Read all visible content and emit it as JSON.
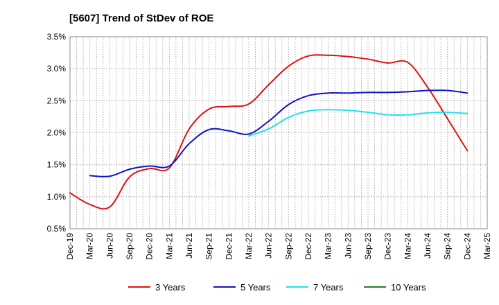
{
  "chart_data": {
    "type": "line",
    "title": "[5607]  Trend of StDev of ROE",
    "xlabel": "",
    "ylabel": "",
    "x_ticks": [
      "Dec-19",
      "Mar-20",
      "Jun-20",
      "Sep-20",
      "Dec-20",
      "Mar-21",
      "Jun-21",
      "Sep-21",
      "Dec-21",
      "Mar-22",
      "Jun-22",
      "Sep-22",
      "Dec-22",
      "Mar-23",
      "Jun-23",
      "Sep-23",
      "Dec-23",
      "Mar-24",
      "Jun-24",
      "Sep-24",
      "Dec-24",
      "Mar-25"
    ],
    "y_ticks": [
      "0.5%",
      "1.0%",
      "1.5%",
      "2.0%",
      "2.5%",
      "3.0%",
      "3.5%"
    ],
    "ylim": [
      0.5,
      3.5
    ],
    "grid": true,
    "legend_position": "bottom",
    "series": [
      {
        "name": "3 Years",
        "color": "#e01010",
        "x": [
          "Dec-19",
          "Mar-20",
          "Jun-20",
          "Sep-20",
          "Dec-20",
          "Mar-21",
          "Jun-21",
          "Sep-21",
          "Dec-21",
          "Mar-22",
          "Jun-22",
          "Sep-22",
          "Dec-22",
          "Mar-23",
          "Jun-23",
          "Sep-23",
          "Dec-23",
          "Mar-24",
          "Jun-24",
          "Sep-24",
          "Dec-24"
        ],
        "values": [
          1.06,
          0.88,
          0.84,
          1.31,
          1.44,
          1.45,
          2.06,
          2.37,
          2.41,
          2.45,
          2.75,
          3.04,
          3.2,
          3.21,
          3.19,
          3.15,
          3.09,
          3.1,
          2.71,
          2.22,
          1.72
        ]
      },
      {
        "name": "5 Years",
        "color": "#1010c8",
        "x": [
          "Mar-20",
          "Jun-20",
          "Sep-20",
          "Dec-20",
          "Mar-21",
          "Jun-21",
          "Sep-21",
          "Dec-21",
          "Mar-22",
          "Jun-22",
          "Sep-22",
          "Dec-22",
          "Mar-23",
          "Jun-23",
          "Sep-23",
          "Dec-23",
          "Mar-24",
          "Jun-24",
          "Sep-24",
          "Dec-24"
        ],
        "values": [
          1.33,
          1.32,
          1.43,
          1.48,
          1.48,
          1.83,
          2.05,
          2.03,
          1.98,
          2.18,
          2.44,
          2.58,
          2.62,
          2.62,
          2.63,
          2.63,
          2.64,
          2.66,
          2.66,
          2.62
        ]
      },
      {
        "name": "7 Years",
        "color": "#20e0e8",
        "x": [
          "Mar-22",
          "Jun-22",
          "Sep-22",
          "Dec-22",
          "Mar-23",
          "Jun-23",
          "Sep-23",
          "Dec-23",
          "Mar-24",
          "Jun-24",
          "Sep-24",
          "Dec-24"
        ],
        "values": [
          1.95,
          2.06,
          2.24,
          2.34,
          2.36,
          2.35,
          2.32,
          2.28,
          2.28,
          2.31,
          2.32,
          2.3
        ]
      },
      {
        "name": "10 Years",
        "color": "#208020",
        "x": [],
        "values": []
      }
    ]
  }
}
